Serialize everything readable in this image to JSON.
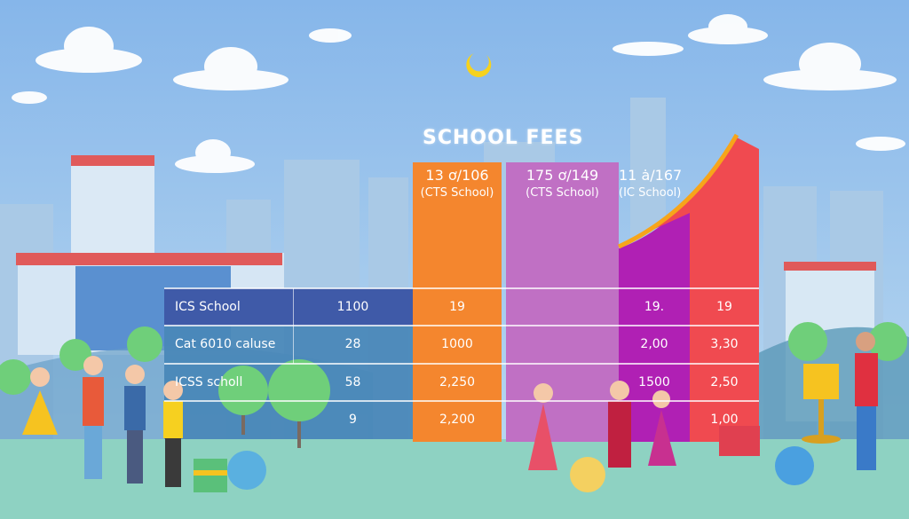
{
  "title": "SCHOOL FEES",
  "colors": {
    "sky": "#8cbbe8",
    "ground": "#8ed2c2",
    "orange": "#f4862e",
    "purple": "#c070c4",
    "magenta": "#b020b4",
    "red": "#f04a50",
    "table_blue": "#3f5aa8",
    "table_teal": "#4a88b8"
  },
  "headers": [
    {
      "value": "13 ơ/106",
      "school": "(CTS School)"
    },
    {
      "value": "175 ơ/149",
      "school": "(CTS School)"
    },
    {
      "value": "11 ȧ/167",
      "school": "(IC School)"
    }
  ],
  "table": {
    "rows": [
      {
        "label": "ICS School",
        "cells": [
          "1100",
          "19",
          "",
          "19.",
          "19"
        ]
      },
      {
        "label": "Cat 6010 caluse",
        "cells": [
          "28",
          "1000",
          "",
          "2,00",
          "3,30"
        ]
      },
      {
        "label": "ICSS scholl",
        "cells": [
          "58",
          "2,250",
          "",
          "1500",
          "2,50"
        ]
      },
      {
        "label": "",
        "cells": [
          "9",
          "2,200",
          "",
          "",
          "1,00"
        ]
      }
    ]
  }
}
